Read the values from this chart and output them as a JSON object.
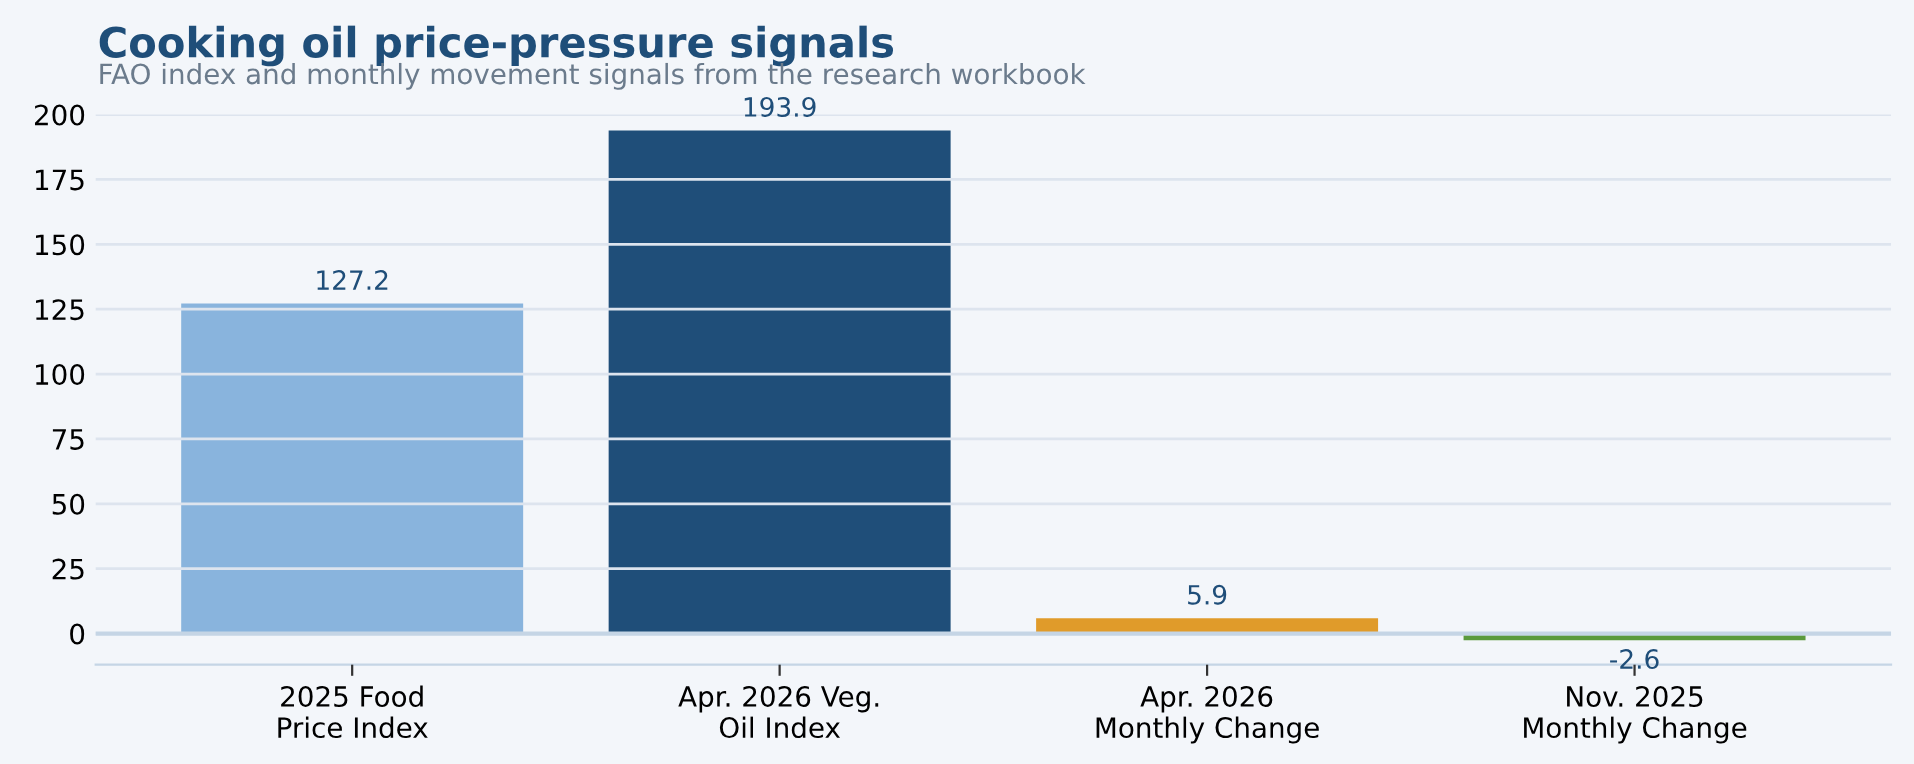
{
  "chart_data": {
    "type": "bar",
    "title": "Cooking oil price-pressure signals",
    "subtitle": "FAO index and monthly movement signals from the research workbook",
    "categories": [
      "2025 Food\nPrice Index",
      "Apr. 2026 Veg.\nOil Index",
      "Apr. 2026\nMonthly Change",
      "Nov. 2025\nMonthly Change"
    ],
    "values": [
      127.2,
      193.9,
      5.9,
      -2.6
    ],
    "colors": [
      "#89b4dd",
      "#1f4e79",
      "#e09b2a",
      "#5b9a3c"
    ],
    "ylim": [
      -12,
      200
    ],
    "yticks": [
      0,
      25,
      50,
      75,
      100,
      125,
      150,
      175,
      200
    ],
    "grid": "y",
    "data_labels": true,
    "ref_lines": [
      {
        "axis": "y",
        "value": 0,
        "color": "#c5d5e5"
      }
    ]
  }
}
